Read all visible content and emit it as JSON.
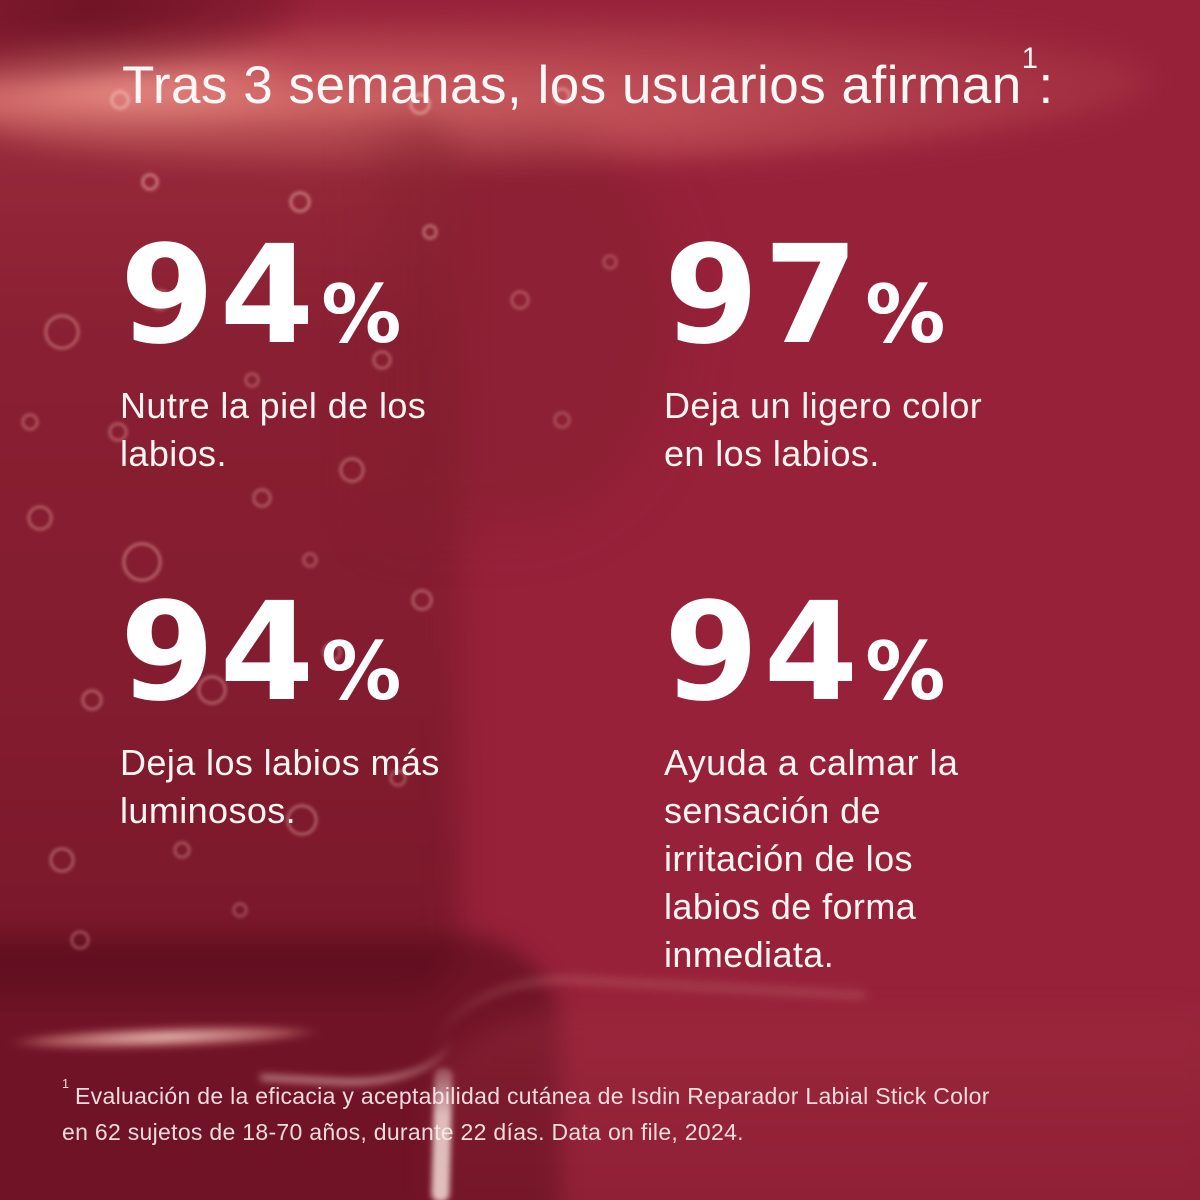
{
  "title": {
    "text": "Tras 3 semanas, los usuarios afirman",
    "superscript": "1",
    "colon": ":"
  },
  "stats": [
    {
      "value": "94",
      "unit": "%",
      "description": "Nutre la piel de los\nlabios."
    },
    {
      "value": "97",
      "unit": "%",
      "description": "Deja un ligero color\nen los labios."
    },
    {
      "value": "94",
      "unit": "%",
      "description": "Deja los labios más\nluminosos."
    },
    {
      "value": "94",
      "unit": "%",
      "description": "Ayuda a calmar la\nsensación de\nirritación de los\nlabios de forma\ninmediata."
    }
  ],
  "footnote": {
    "superscript": "1",
    "text": "Evaluación de la eficacia y aceptabilidad cutánea de Isdin Reparador Labial Stick Color\nen 62 sujetos de 18-70 años, durante 22 días. Data on file, 2024."
  },
  "colors": {
    "background": "#972139",
    "text": "#ffffff",
    "photo_highlight": "#c45a5f",
    "photo_shadow": "#6e1527"
  }
}
